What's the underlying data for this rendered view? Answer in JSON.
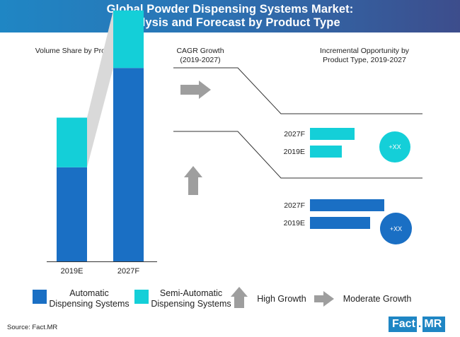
{
  "header": {
    "title_line1": "Global Powder Dispensing Systems Market:",
    "title_line2": "Analysis and Forecast by Product Type"
  },
  "sections": {
    "volume_share_title": "Volume Share by Product Type",
    "cagr_title_line1": "CAGR Growth",
    "cagr_title_line2": "(2019-2027)",
    "incremental_title_line1": "Incremental Opportunity by",
    "incremental_title_line2": "Product Type, 2019-2027"
  },
  "colors": {
    "automatic": "#1a6fc4",
    "semi_automatic": "#14cfd8",
    "connector": "#d9d9d9",
    "arrow": "#9e9e9e",
    "brand": "#1f86c4"
  },
  "chart_data": [
    {
      "type": "bar",
      "stacked": true,
      "title": "Volume Share by Product Type",
      "categories": [
        "2019E",
        "2027F"
      ],
      "series": [
        {
          "name": "Automatic Dispensing Systems",
          "values": [
            72,
            148
          ]
        },
        {
          "name": "Semi-Automatic Dispensing Systems",
          "values": [
            38,
            44
          ]
        }
      ]
    },
    {
      "type": "bar",
      "orientation": "horizontal",
      "segment": "Semi-Automatic Dispensing Systems",
      "categories": [
        "2027F",
        "2019E"
      ],
      "values": [
        63,
        45
      ],
      "badge": "+XX"
    },
    {
      "type": "bar",
      "orientation": "horizontal",
      "segment": "Automatic Dispensing Systems",
      "categories": [
        "2027F",
        "2019E"
      ],
      "values": [
        105,
        85
      ],
      "badge": "+XX"
    }
  ],
  "cagr_arrows": [
    {
      "segment": "Semi-Automatic Dispensing Systems",
      "direction": "right",
      "meaning": "Moderate Growth"
    },
    {
      "segment": "Automatic Dispensing Systems",
      "direction": "up",
      "meaning": "High Growth"
    }
  ],
  "legend": {
    "automatic_line1": "Automatic",
    "automatic_line2": "Dispensing Systems",
    "semi_line1": "Semi-Automatic",
    "semi_line2": "Dispensing Systems",
    "high_growth": "High Growth",
    "moderate_growth": "Moderate Growth"
  },
  "footer": {
    "source": "Source: Fact.MR",
    "logo_part1": "Fact",
    "logo_part2": ".",
    "logo_part3": "MR"
  }
}
